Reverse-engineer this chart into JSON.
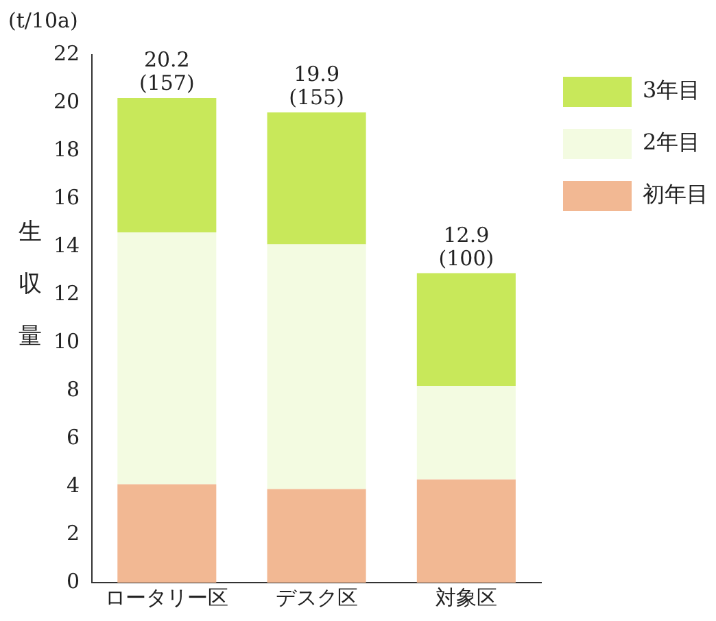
{
  "chart_data": {
    "type": "bar",
    "stacked": true,
    "ylabel": "生収量",
    "annotations": [
      "(t/10a)"
    ],
    "categories": [
      "ロータリー区",
      "デスク区",
      "対象区"
    ],
    "series": [
      {
        "name": "初年目",
        "color": "#f2b893",
        "values": [
          4.1,
          3.9,
          4.3
        ]
      },
      {
        "name": "2年目",
        "color": "#f3fbe1",
        "values": [
          10.5,
          10.2,
          3.9
        ]
      },
      {
        "name": "3年目",
        "color": "#c8e85a",
        "values": [
          5.6,
          5.5,
          4.7
        ]
      }
    ],
    "totals": [
      "20.2\n(157)",
      "19.9\n(155)",
      "12.9\n(100)"
    ],
    "ylim": [
      0,
      22
    ],
    "yticks": [
      0,
      2,
      4,
      6,
      8,
      10,
      12,
      14,
      16,
      18,
      20,
      22
    ],
    "grid": false,
    "legend": "top right"
  }
}
